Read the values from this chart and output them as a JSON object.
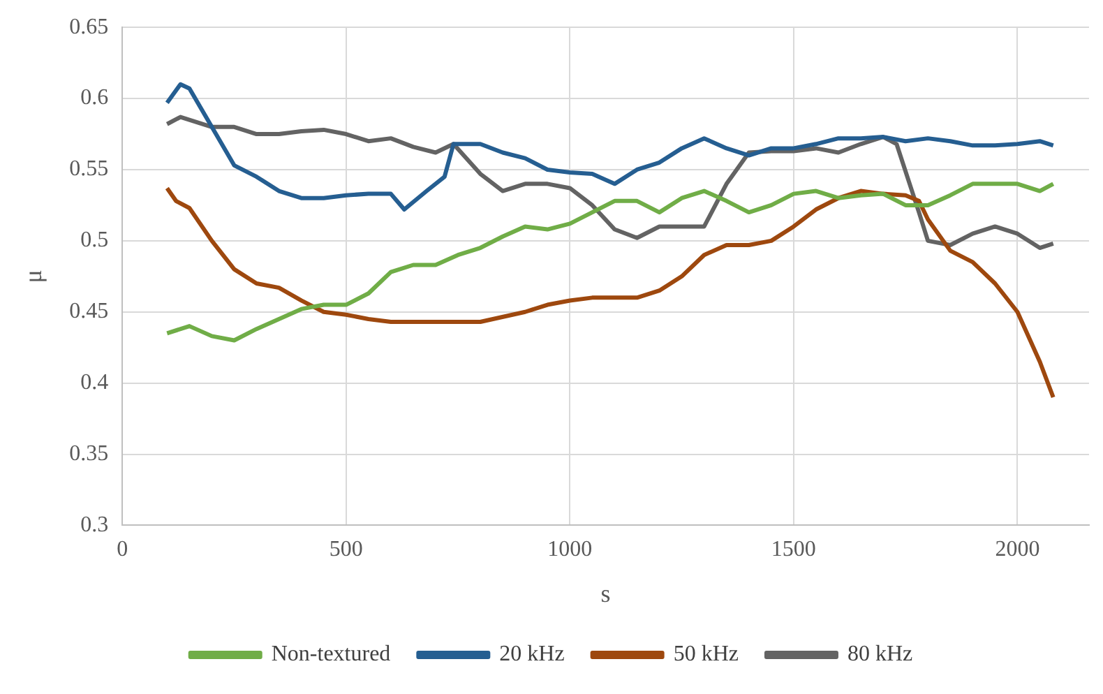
{
  "chart_data": {
    "type": "line",
    "xlabel": "s",
    "ylabel": "μ",
    "xlim": [
      0,
      2160
    ],
    "xticks": [
      0,
      500,
      1000,
      1500,
      2000
    ],
    "ylim": [
      0.3,
      0.65
    ],
    "yticks": [
      0.3,
      0.35,
      0.4,
      0.45,
      0.5,
      0.55,
      0.6,
      0.65
    ],
    "grid": true,
    "legend": "bottom",
    "marker": "none",
    "line_style": "solid",
    "series": [
      {
        "name": "Non-textured",
        "color": "#70ad47",
        "x": [
          100,
          150,
          200,
          250,
          300,
          350,
          400,
          450,
          500,
          550,
          600,
          650,
          700,
          750,
          800,
          850,
          900,
          950,
          1000,
          1050,
          1100,
          1150,
          1200,
          1250,
          1300,
          1350,
          1400,
          1450,
          1500,
          1550,
          1600,
          1650,
          1700,
          1750,
          1800,
          1850,
          1900,
          1950,
          2000,
          2050,
          2080
        ],
        "values": [
          0.435,
          0.44,
          0.433,
          0.43,
          0.438,
          0.445,
          0.452,
          0.455,
          0.455,
          0.463,
          0.478,
          0.483,
          0.483,
          0.49,
          0.495,
          0.503,
          0.51,
          0.508,
          0.512,
          0.52,
          0.528,
          0.528,
          0.52,
          0.53,
          0.535,
          0.528,
          0.52,
          0.525,
          0.533,
          0.535,
          0.53,
          0.532,
          0.533,
          0.525,
          0.525,
          0.532,
          0.54,
          0.54,
          0.54,
          0.535,
          0.54
        ]
      },
      {
        "name": "20 kHz",
        "color": "#255e91",
        "x": [
          100,
          130,
          150,
          200,
          250,
          300,
          350,
          400,
          450,
          500,
          550,
          600,
          630,
          680,
          720,
          740,
          800,
          850,
          900,
          950,
          1000,
          1050,
          1100,
          1150,
          1200,
          1250,
          1300,
          1350,
          1400,
          1450,
          1500,
          1550,
          1600,
          1650,
          1700,
          1750,
          1800,
          1850,
          1900,
          1950,
          2000,
          2050,
          2080
        ],
        "values": [
          0.597,
          0.61,
          0.607,
          0.58,
          0.553,
          0.545,
          0.535,
          0.53,
          0.53,
          0.532,
          0.533,
          0.533,
          0.522,
          0.535,
          0.545,
          0.568,
          0.568,
          0.562,
          0.558,
          0.55,
          0.548,
          0.547,
          0.54,
          0.55,
          0.555,
          0.565,
          0.572,
          0.565,
          0.56,
          0.565,
          0.565,
          0.568,
          0.572,
          0.572,
          0.573,
          0.57,
          0.572,
          0.57,
          0.567,
          0.567,
          0.568,
          0.57,
          0.567
        ]
      },
      {
        "name": "50 kHz",
        "color": "#9e480e",
        "x": [
          100,
          120,
          150,
          200,
          250,
          300,
          350,
          400,
          450,
          500,
          550,
          600,
          700,
          800,
          900,
          950,
          1000,
          1050,
          1100,
          1150,
          1200,
          1250,
          1300,
          1350,
          1400,
          1450,
          1500,
          1550,
          1600,
          1650,
          1700,
          1750,
          1780,
          1800,
          1850,
          1900,
          1950,
          2000,
          2050,
          2080
        ],
        "values": [
          0.537,
          0.528,
          0.523,
          0.5,
          0.48,
          0.47,
          0.467,
          0.458,
          0.45,
          0.448,
          0.445,
          0.443,
          0.443,
          0.443,
          0.45,
          0.455,
          0.458,
          0.46,
          0.46,
          0.46,
          0.465,
          0.475,
          0.49,
          0.497,
          0.497,
          0.5,
          0.51,
          0.522,
          0.53,
          0.535,
          0.533,
          0.532,
          0.528,
          0.515,
          0.493,
          0.485,
          0.47,
          0.45,
          0.415,
          0.39
        ]
      },
      {
        "name": "80 kHz",
        "color": "#636363",
        "x": [
          100,
          130,
          200,
          250,
          300,
          350,
          400,
          450,
          500,
          550,
          600,
          650,
          700,
          740,
          800,
          850,
          900,
          950,
          1000,
          1050,
          1100,
          1150,
          1200,
          1250,
          1300,
          1350,
          1400,
          1450,
          1500,
          1550,
          1600,
          1650,
          1700,
          1730,
          1780,
          1800,
          1850,
          1900,
          1950,
          2000,
          2050,
          2080
        ],
        "values": [
          0.582,
          0.587,
          0.58,
          0.58,
          0.575,
          0.575,
          0.577,
          0.578,
          0.575,
          0.57,
          0.572,
          0.566,
          0.562,
          0.568,
          0.547,
          0.535,
          0.54,
          0.54,
          0.537,
          0.525,
          0.508,
          0.502,
          0.51,
          0.51,
          0.51,
          0.54,
          0.562,
          0.563,
          0.563,
          0.565,
          0.562,
          0.568,
          0.573,
          0.568,
          0.52,
          0.5,
          0.497,
          0.505,
          0.51,
          0.505,
          0.495,
          0.498
        ]
      }
    ]
  }
}
